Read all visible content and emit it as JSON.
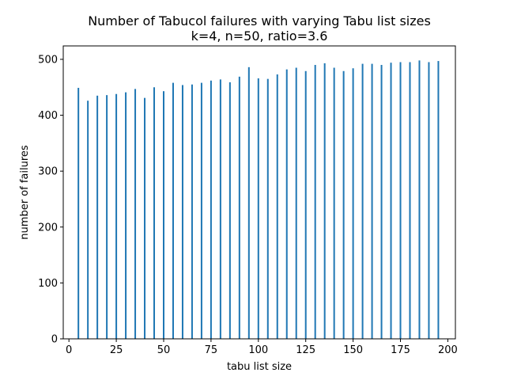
{
  "chart_data": {
    "type": "bar",
    "title": "Number of Tabucol failures with varying Tabu list sizes",
    "subtitle": "k=4, n=50, ratio=3.6",
    "xlabel": "tabu list size",
    "ylabel": "number of failures",
    "xlim": [
      -3,
      204
    ],
    "ylim": [
      0,
      524
    ],
    "xticks": [
      0,
      25,
      50,
      75,
      100,
      125,
      150,
      175,
      200
    ],
    "yticks": [
      0,
      100,
      200,
      300,
      400,
      500
    ],
    "bar_color": "#1f77b4",
    "grid": false,
    "x": [
      5,
      10,
      15,
      20,
      25,
      30,
      35,
      40,
      45,
      50,
      55,
      60,
      65,
      70,
      75,
      80,
      85,
      90,
      95,
      100,
      105,
      110,
      115,
      120,
      125,
      130,
      135,
      140,
      145,
      150,
      155,
      160,
      165,
      170,
      175,
      180,
      185,
      190,
      195
    ],
    "values": [
      449,
      426,
      435,
      436,
      438,
      441,
      447,
      431,
      450,
      443,
      458,
      454,
      455,
      458,
      462,
      464,
      459,
      469,
      486,
      466,
      465,
      473,
      482,
      485,
      479,
      490,
      493,
      485,
      479,
      484,
      492,
      492,
      490,
      494,
      495,
      495,
      498,
      495,
      497
    ]
  }
}
